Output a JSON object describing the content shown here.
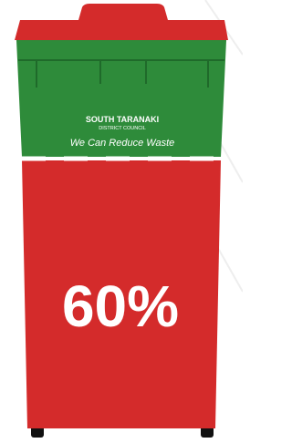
{
  "brand": {
    "name": "SOUTH TARANAKI",
    "subname": "DISTRICT COUNCIL",
    "slogan": "We Can Reduce Waste"
  },
  "fill_label": "60%"
}
